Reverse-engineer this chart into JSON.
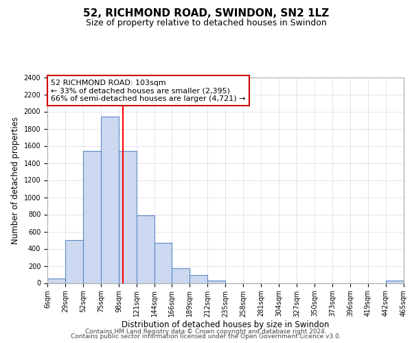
{
  "title": "52, RICHMOND ROAD, SWINDON, SN2 1LZ",
  "subtitle": "Size of property relative to detached houses in Swindon",
  "xlabel": "Distribution of detached houses by size in Swindon",
  "ylabel": "Number of detached properties",
  "footer_line1": "Contains HM Land Registry data © Crown copyright and database right 2024.",
  "footer_line2": "Contains public sector information licensed under the Open Government Licence v3.0.",
  "bin_edges": [
    6,
    29,
    52,
    75,
    98,
    121,
    144,
    166,
    189,
    212,
    235,
    258,
    281,
    304,
    327,
    350,
    373,
    396,
    419,
    442,
    465
  ],
  "bar_heights": [
    50,
    500,
    1540,
    1940,
    1540,
    790,
    470,
    175,
    90,
    30,
    0,
    0,
    0,
    0,
    0,
    0,
    0,
    0,
    0,
    30
  ],
  "bar_color": "#ccd9f0",
  "bar_edgecolor": "#5b87c5",
  "red_line_x": 103,
  "ylim": [
    0,
    2400
  ],
  "yticks": [
    0,
    200,
    400,
    600,
    800,
    1000,
    1200,
    1400,
    1600,
    1800,
    2000,
    2200,
    2400
  ],
  "xtick_labels": [
    "6sqm",
    "29sqm",
    "52sqm",
    "75sqm",
    "98sqm",
    "121sqm",
    "144sqm",
    "166sqm",
    "189sqm",
    "212sqm",
    "235sqm",
    "258sqm",
    "281sqm",
    "304sqm",
    "327sqm",
    "350sqm",
    "373sqm",
    "396sqm",
    "419sqm",
    "442sqm",
    "465sqm"
  ],
  "annotation_title": "52 RICHMOND ROAD: 103sqm",
  "annotation_line1": "← 33% of detached houses are smaller (2,395)",
  "annotation_line2": "66% of semi-detached houses are larger (4,721) →",
  "grid_color": "#d8d8e8",
  "background_color": "#ffffff",
  "title_fontsize": 11,
  "subtitle_fontsize": 9,
  "axis_label_fontsize": 8.5,
  "tick_fontsize": 7,
  "annotation_fontsize": 8,
  "footer_fontsize": 6.5
}
